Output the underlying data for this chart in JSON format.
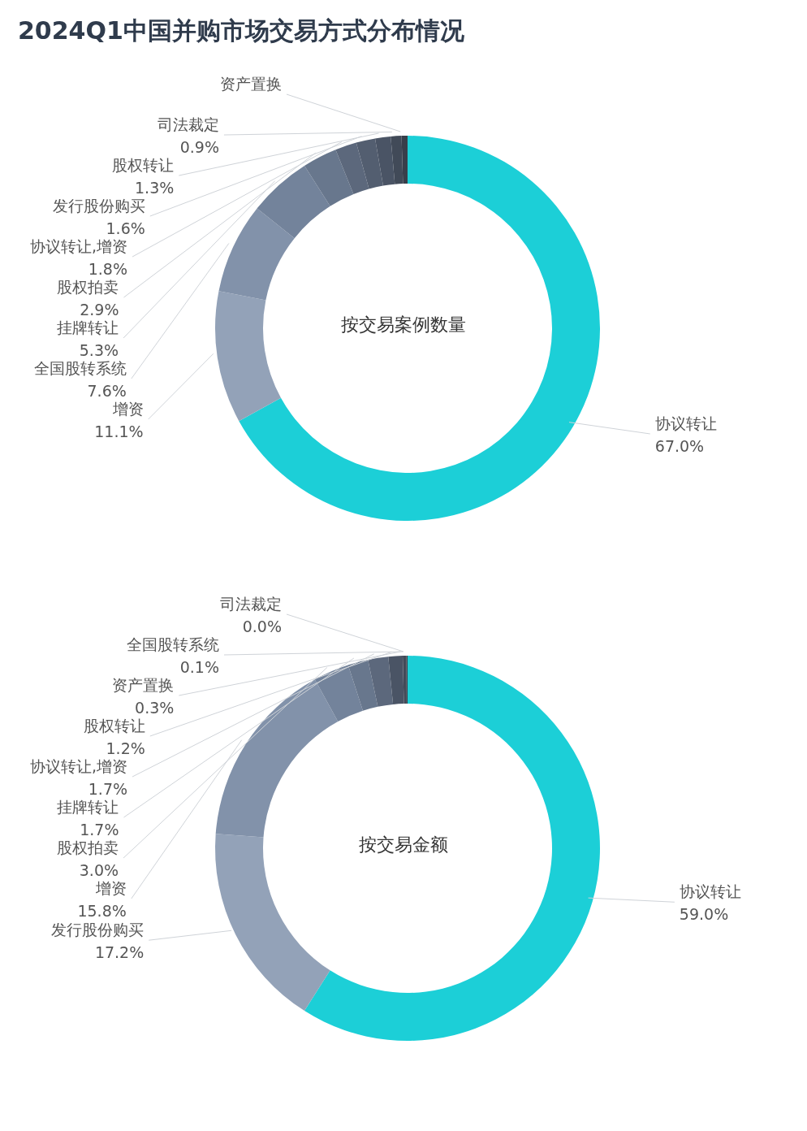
{
  "chart_data": [
    {
      "type": "donut",
      "title": "2024Q1中国并购市场交易方式分布情况",
      "annotations": [
        "按交易案例数量"
      ],
      "categories": [
        "协议转让",
        "增资",
        "全国股转系统",
        "挂牌转让",
        "股权拍卖",
        "协议转让,增资",
        "发行股份购买",
        "股权转让",
        "司法裁定",
        "资产置换"
      ],
      "values": [
        67.0,
        11.1,
        7.6,
        5.3,
        2.9,
        1.8,
        1.6,
        1.3,
        0.9,
        0.5
      ],
      "value_labels": [
        "67.0%",
        "11.1%",
        "7.6%",
        "5.3%",
        "2.9%",
        "1.8%",
        "1.6%",
        "1.3%",
        "0.9%",
        null
      ],
      "colors": [
        "#1ccfd7",
        "#93a2b8",
        "#8292aa",
        "#73839b",
        "#68778d",
        "#5c687c",
        "#535e70",
        "#4a5465",
        "#414a58",
        "#383f4b"
      ]
    },
    {
      "type": "donut",
      "annotations": [
        "按交易金额"
      ],
      "categories": [
        "协议转让",
        "发行股份购买",
        "增资",
        "股权拍卖",
        "挂牌转让",
        "协议转让,增资",
        "股权转让",
        "资产置换",
        "全国股转系统",
        "司法裁定"
      ],
      "values": [
        59.0,
        17.2,
        15.8,
        3.0,
        1.7,
        1.7,
        1.2,
        0.3,
        0.1,
        0.0
      ],
      "value_labels": [
        "59.0%",
        "17.2%",
        "15.8%",
        "3.0%",
        "1.7%",
        "1.7%",
        "1.2%",
        "0.3%",
        "0.1%",
        "0.0%"
      ],
      "colors": [
        "#1ccfd7",
        "#93a2b8",
        "#8292aa",
        "#73839b",
        "#68778d",
        "#5c687c",
        "#4a5465",
        "#414a58",
        "#383f4b",
        "#333944"
      ]
    }
  ]
}
